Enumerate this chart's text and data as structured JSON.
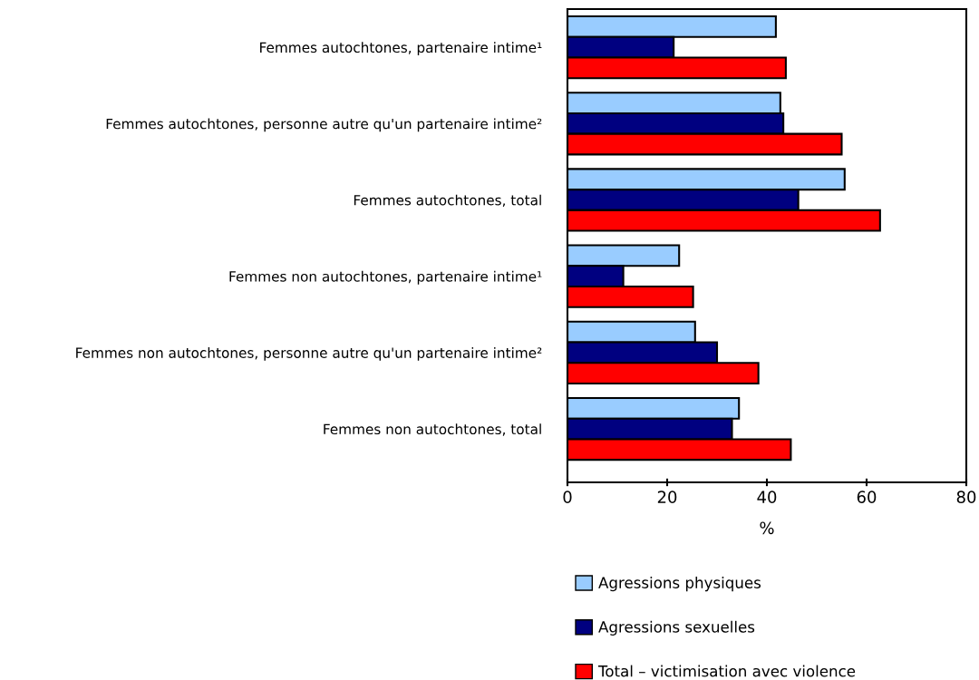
{
  "chart_data": {
    "type": "bar",
    "orientation": "horizontal",
    "xlabel": "%",
    "categories": [
      "Femmes autochtones, partenaire intime¹",
      "Femmes autochtones, personne autre qu'un partenaire intime²",
      "Femmes autochtones, total",
      "Femmes non autochtones, partenaire intime¹",
      "Femmes non autochtones, personne autre qu'un partenaire intime²",
      "Femmes non autochtones, total"
    ],
    "series": [
      {
        "name": "Agressions physiques",
        "color": "#99ccff",
        "values": [
          41.8,
          42.7,
          55.6,
          22.4,
          25.6,
          34.4
        ]
      },
      {
        "name": "Agressions sexuelles",
        "color": "#000080",
        "values": [
          21.3,
          43.3,
          46.3,
          11.2,
          30.0,
          33.0
        ]
      },
      {
        "name": "Total – victimisation avec violence",
        "color": "#ff0000",
        "values": [
          43.8,
          55.0,
          62.7,
          25.2,
          38.3,
          44.8
        ]
      }
    ],
    "xlim": [
      0,
      80
    ],
    "xticks": [
      0,
      20,
      40,
      60,
      80
    ],
    "grid": false,
    "legend": "bottom"
  }
}
